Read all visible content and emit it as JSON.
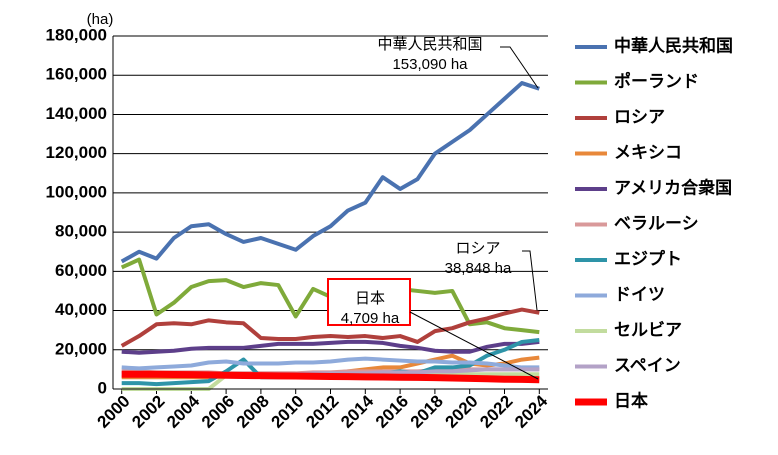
{
  "chart_data": {
    "type": "line",
    "y_label": "(ha)",
    "x": [
      2000,
      2001,
      2002,
      2003,
      2004,
      2005,
      2006,
      2007,
      2008,
      2009,
      2010,
      2011,
      2012,
      2013,
      2014,
      2015,
      2016,
      2017,
      2018,
      2019,
      2020,
      2021,
      2022,
      2023,
      2024
    ],
    "xlim": [
      1999.5,
      2024.5
    ],
    "xticks": [
      2000,
      2002,
      2004,
      2006,
      2008,
      2010,
      2012,
      2014,
      2016,
      2018,
      2020,
      2022,
      2024
    ],
    "ylim": [
      0,
      180000
    ],
    "yticks": [
      {
        "value": 0,
        "label": "0"
      },
      {
        "value": 20000,
        "label": "20,000"
      },
      {
        "value": 40000,
        "label": "40,000"
      },
      {
        "value": 60000,
        "label": "60,000"
      },
      {
        "value": 80000,
        "label": "80,000"
      },
      {
        "value": 100000,
        "label": "100,000"
      },
      {
        "value": 120000,
        "label": "120,000"
      },
      {
        "value": 140000,
        "label": "140,000"
      },
      {
        "value": 160000,
        "label": "160,000"
      },
      {
        "value": 180000,
        "label": "180,000"
      }
    ],
    "grid": true,
    "legend": "right",
    "series": [
      {
        "name": "中華人民共和国",
        "color": "#4a72b0",
        "values": [
          65000,
          70000,
          66500,
          77000,
          83000,
          84000,
          79000,
          75000,
          77000,
          74000,
          71000,
          78000,
          83000,
          91000,
          95000,
          108000,
          102000,
          107000,
          120000,
          126000,
          132000,
          140000,
          148000,
          156000,
          153090
        ]
      },
      {
        "name": "ポーランド",
        "color": "#7faa3a",
        "values": [
          62000,
          66000,
          38000,
          44000,
          52000,
          55000,
          55500,
          52000,
          54000,
          53000,
          37000,
          51000,
          47000,
          55000,
          53000,
          52000,
          51000,
          50000,
          49000,
          50000,
          33000,
          34000,
          31000,
          30000,
          29000
        ]
      },
      {
        "name": "ロシア",
        "color": "#b0403c",
        "values": [
          22000,
          27000,
          33000,
          33500,
          33000,
          35000,
          34000,
          33500,
          26000,
          25500,
          25500,
          26500,
          27000,
          26500,
          27000,
          26000,
          27000,
          24000,
          29500,
          31000,
          34000,
          36000,
          38500,
          40500,
          38848
        ]
      },
      {
        "name": "メキシコ",
        "color": "#e8883a",
        "values": [
          6000,
          6000,
          6000,
          6000,
          6000,
          6000,
          6500,
          6500,
          7000,
          7000,
          7000,
          7500,
          8000,
          9000,
          10000,
          11000,
          11000,
          13000,
          15000,
          17000,
          13000,
          12000,
          13000,
          15000,
          16000
        ]
      },
      {
        "name": "アメリカ合衆国",
        "color": "#5d3f8a",
        "values": [
          19000,
          18500,
          19000,
          19500,
          20500,
          21000,
          21000,
          21000,
          22000,
          23000,
          23000,
          23000,
          23500,
          24000,
          24000,
          23500,
          22000,
          21000,
          19500,
          19000,
          19000,
          21500,
          23000,
          23000,
          24000
        ]
      },
      {
        "name": "ベラルーシ",
        "color": "#d9999a",
        "values": [
          9000,
          9000,
          8500,
          8500,
          8500,
          8500,
          8000,
          8000,
          8000,
          8000,
          8000,
          8500,
          8500,
          9000,
          9000,
          9000,
          9000,
          9000,
          9500,
          9500,
          10000,
          10000,
          10000,
          10000,
          10000
        ]
      },
      {
        "name": "エジプト",
        "color": "#2e94a8",
        "values": [
          3000,
          3000,
          2500,
          3000,
          3500,
          4000,
          9000,
          15000,
          6000,
          6000,
          6000,
          6000,
          6000,
          6500,
          7000,
          8000,
          9000,
          8000,
          11000,
          11000,
          12000,
          17000,
          20000,
          24000,
          25000
        ]
      },
      {
        "name": "ドイツ",
        "color": "#8eaadb",
        "values": [
          11000,
          10500,
          11000,
          11500,
          12000,
          13500,
          14000,
          13000,
          13000,
          13000,
          13500,
          13500,
          14000,
          15000,
          15500,
          15000,
          14500,
          14000,
          14000,
          13500,
          13500,
          13000,
          12000,
          11000,
          11000
        ]
      },
      {
        "name": "セルビア",
        "color": "#c2dc9e",
        "values": [
          0,
          0,
          0,
          0,
          0,
          0,
          7000,
          7000,
          7000,
          7000,
          7000,
          7000,
          7500,
          7500,
          7500,
          7500,
          7500,
          7500,
          7500,
          7500,
          7500,
          7500,
          7500,
          7500,
          7500
        ]
      },
      {
        "name": "スペイン",
        "color": "#b3a2c7",
        "values": [
          7500,
          7500,
          7500,
          7500,
          7500,
          7500,
          7500,
          7500,
          7500,
          7500,
          7500,
          8000,
          8000,
          8000,
          8000,
          8500,
          8500,
          8500,
          9000,
          9000,
          9500,
          10000,
          10000,
          10000,
          10000
        ]
      },
      {
        "name": "日本",
        "color": "#ff0000",
        "values": [
          7500,
          7500,
          7500,
          7400,
          7300,
          7200,
          7000,
          6900,
          6800,
          6700,
          6600,
          6500,
          6400,
          6300,
          6200,
          6100,
          6000,
          5900,
          5800,
          5600,
          5400,
          5200,
          5000,
          4900,
          4709
        ]
      }
    ],
    "annotations": [
      {
        "lines": [
          "中華人民共和国",
          "153,090 ha"
        ]
      },
      {
        "lines": [
          "ロシア",
          "38,848 ha"
        ]
      },
      {
        "lines": [
          "日本",
          "4,709 ha"
        ]
      }
    ]
  }
}
